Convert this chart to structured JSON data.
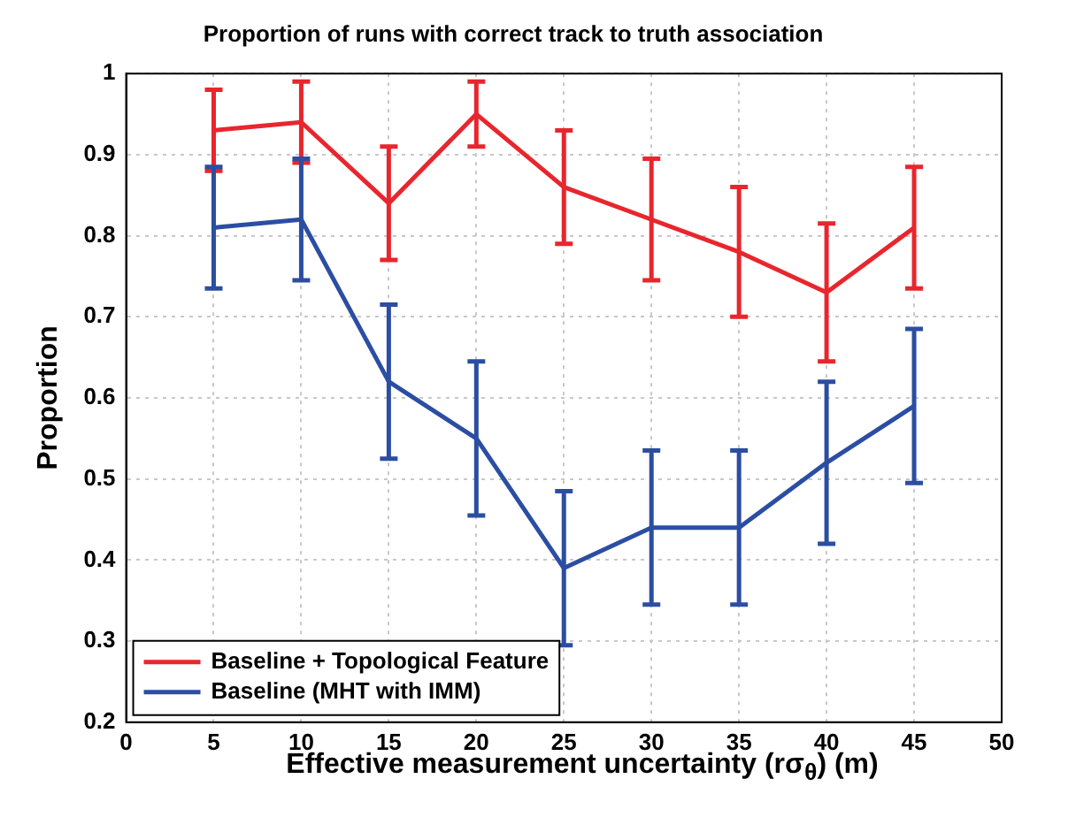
{
  "chart_data": {
    "type": "line",
    "title": "Proportion of runs with correct track to truth association",
    "xlabel": "Effective measurement uncertainty (rσ$_{θ}$) (m)",
    "ylabel": "Proportion",
    "x": [
      5,
      10,
      15,
      20,
      25,
      30,
      35,
      40,
      45
    ],
    "series": [
      {
        "name": "Baseline + Topological Feature",
        "color": "#e8262d",
        "values": [
          0.93,
          0.94,
          0.84,
          0.95,
          0.86,
          0.82,
          0.78,
          0.73,
          0.81
        ],
        "errors": [
          0.05,
          0.05,
          0.07,
          0.04,
          0.07,
          0.075,
          0.08,
          0.085,
          0.075
        ]
      },
      {
        "name": "Baseline (MHT with IMM)",
        "color": "#2b4ea2",
        "values": [
          0.81,
          0.82,
          0.62,
          0.55,
          0.39,
          0.44,
          0.44,
          0.52,
          0.59
        ],
        "errors": [
          0.075,
          0.075,
          0.095,
          0.095,
          0.095,
          0.095,
          0.095,
          0.1,
          0.095
        ]
      }
    ],
    "xlim": [
      0,
      50
    ],
    "xticks": [
      0,
      5,
      10,
      15,
      20,
      25,
      30,
      35,
      40,
      45,
      50
    ],
    "ylim": [
      0.2,
      1
    ],
    "yticks": [
      0.2,
      0.3,
      0.4,
      0.5,
      0.6,
      0.7,
      0.8,
      0.9,
      1
    ],
    "grid": true,
    "legend": "bottom left",
    "marker": "none",
    "line_style": "solid"
  }
}
